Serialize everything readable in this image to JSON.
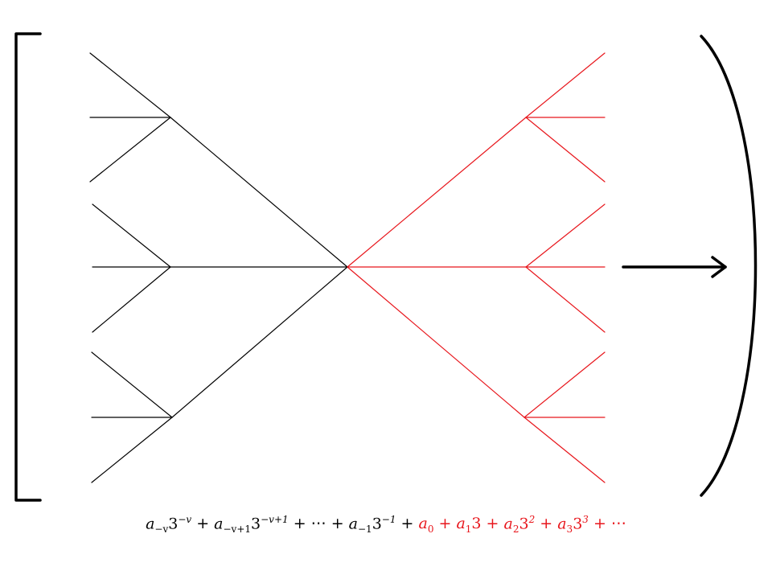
{
  "colors": {
    "negative_tree": "#000000",
    "positive_tree": "#e8161c",
    "frame": "#000000"
  },
  "formula": {
    "negative_terms": [
      {
        "coef": "a",
        "coef_sub": "−v",
        "base": "3",
        "exp": "−v",
        "op": " + "
      },
      {
        "coef": "a",
        "coef_sub": "−v+1",
        "base": "3",
        "exp": "−v+1",
        "op": " + "
      },
      {
        "text": "⋯",
        "op": " + "
      },
      {
        "coef": "a",
        "coef_sub": "−1",
        "base": "3",
        "exp": "−1",
        "op": " + "
      }
    ],
    "positive_terms": [
      {
        "coef": "a",
        "coef_sub": "0",
        "op": " + "
      },
      {
        "coef": "a",
        "coef_sub": "1",
        "base": "3",
        "op": " + "
      },
      {
        "coef": "a",
        "coef_sub": "2",
        "base": "3",
        "exp": "2",
        "op": " + "
      },
      {
        "coef": "a",
        "coef_sub": "3",
        "base": "3",
        "exp": "3",
        "op": " + "
      },
      {
        "text": "⋯"
      }
    ]
  }
}
